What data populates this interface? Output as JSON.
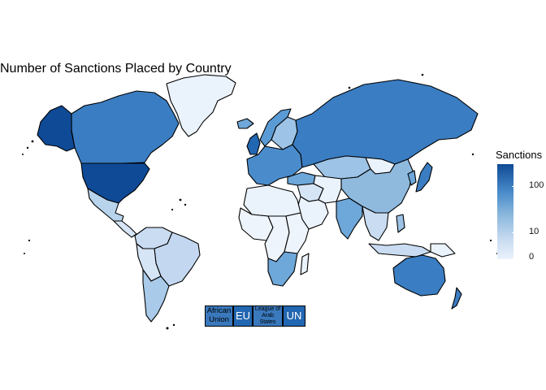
{
  "title": "Number of Sanctions Placed by Country",
  "legend": {
    "title": "Sanctions",
    "scale": "log",
    "ticks": [
      {
        "label": "100",
        "value": 100
      },
      {
        "label": "10",
        "value": 10
      },
      {
        "label": "0",
        "value": 0
      }
    ],
    "colors": {
      "low": "#eaf2fc",
      "high": "#0f4a96"
    }
  },
  "organizations": [
    {
      "label": "African Union",
      "color": "#3a79bd"
    },
    {
      "label": "EU",
      "color": "#2267b1"
    },
    {
      "label": "League of Arab States",
      "color": "#3a79bd"
    },
    {
      "label": "UN",
      "color": "#2267b1"
    }
  ],
  "regions": [
    {
      "name": "United States",
      "color": "#0f4a96"
    },
    {
      "name": "Alaska",
      "color": "#0f4a96"
    },
    {
      "name": "Canada",
      "color": "#3a7dc2"
    },
    {
      "name": "Greenland",
      "color": "#eaf2fc"
    },
    {
      "name": "Mexico",
      "color": "#b8d3ec"
    },
    {
      "name": "Central America",
      "color": "#d6e5f5"
    },
    {
      "name": "Colombia/Venezuela",
      "color": "#c9dcf1"
    },
    {
      "name": "Brazil",
      "color": "#c3d8f0"
    },
    {
      "name": "Peru/Bolivia",
      "color": "#d6e5f5"
    },
    {
      "name": "Chile/Argentina",
      "color": "#a9cae9"
    },
    {
      "name": "Europe",
      "color": "#4a8ccb"
    },
    {
      "name": "Norway",
      "color": "#5b9bd5"
    },
    {
      "name": "Sweden/Finland",
      "color": "#9dc3e6"
    },
    {
      "name": "UK",
      "color": "#2267b1"
    },
    {
      "name": "Iceland",
      "color": "#6ea7d9"
    },
    {
      "name": "Russia",
      "color": "#3a7dc2"
    },
    {
      "name": "Kazakhstan",
      "color": "#9dc3e6"
    },
    {
      "name": "Mongolia",
      "color": "#eaf2fc"
    },
    {
      "name": "China",
      "color": "#8fbade"
    },
    {
      "name": "India",
      "color": "#6ea7d9"
    },
    {
      "name": "Middle East",
      "color": "#d6e5f5"
    },
    {
      "name": "Saudi Arabia",
      "color": "#eaf2fc"
    },
    {
      "name": "Iran",
      "color": "#eaf2fc"
    },
    {
      "name": "Turkey",
      "color": "#6ea7d9"
    },
    {
      "name": "North Africa",
      "color": "#eaf2fc"
    },
    {
      "name": "West Africa",
      "color": "#eef4fc"
    },
    {
      "name": "Central Africa",
      "color": "#eef4fc"
    },
    {
      "name": "East Africa",
      "color": "#eef4fc"
    },
    {
      "name": "South Africa",
      "color": "#6ea7d9"
    },
    {
      "name": "Madagascar",
      "color": "#eaf2fc"
    },
    {
      "name": "Southeast Asia",
      "color": "#c9dcf1"
    },
    {
      "name": "Japan",
      "color": "#3a7dc2"
    },
    {
      "name": "Korea",
      "color": "#6ea7d9"
    },
    {
      "name": "Indonesia",
      "color": "#c9dcf1"
    },
    {
      "name": "Philippines",
      "color": "#9dc3e6"
    },
    {
      "name": "Australia",
      "color": "#3a7dc2"
    },
    {
      "name": "New Zealand",
      "color": "#3a7dc2"
    },
    {
      "name": "Papua New Guinea",
      "color": "#eaf2fc"
    }
  ]
}
